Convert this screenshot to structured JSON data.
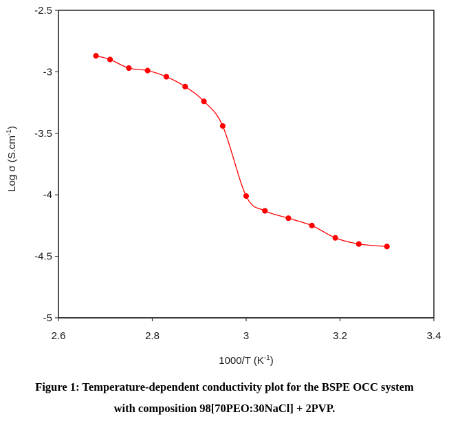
{
  "chart_data": {
    "type": "line",
    "title": "",
    "xlabel": "1000/T (K",
    "xlabel_sup": "-1",
    "xlabel_end": ")",
    "ylabel": "Log σ (S.cm",
    "ylabel_sup": "-1",
    "ylabel_end": ")",
    "xlim": [
      2.6,
      3.4
    ],
    "ylim": [
      -5,
      -2.5
    ],
    "xticks": [
      2.6,
      2.8,
      3.0,
      3.2,
      3.4
    ],
    "xtick_labels": [
      "2.6",
      "2.8",
      "3",
      "3.2",
      "3.4"
    ],
    "yticks": [
      -2.5,
      -3,
      -3.5,
      -4,
      -4.5,
      -5
    ],
    "ytick_labels": [
      "-2.5",
      "-3",
      "-3.5",
      "-4",
      "-4.5",
      "-5"
    ],
    "grid": false,
    "legend": "none",
    "series": [
      {
        "name": "98[70PEO:30NaCl] + 2PVP",
        "color": "#ff0000",
        "marker": "circle",
        "smooth": true,
        "x": [
          2.68,
          2.71,
          2.75,
          2.79,
          2.83,
          2.87,
          2.91,
          2.95,
          3.0,
          3.04,
          3.09,
          3.14,
          3.19,
          3.24,
          3.3
        ],
        "y": [
          -2.87,
          -2.9,
          -2.97,
          -2.99,
          -3.04,
          -3.12,
          -3.24,
          -3.44,
          -4.01,
          -4.13,
          -4.19,
          -4.25,
          -4.35,
          -4.4,
          -4.42
        ]
      }
    ]
  },
  "caption": {
    "line1": "Figure 1: Temperature-dependent conductivity plot for the BSPE OCC system",
    "line2": "with composition 98[70PEO:30NaCl] + 2PVP."
  }
}
